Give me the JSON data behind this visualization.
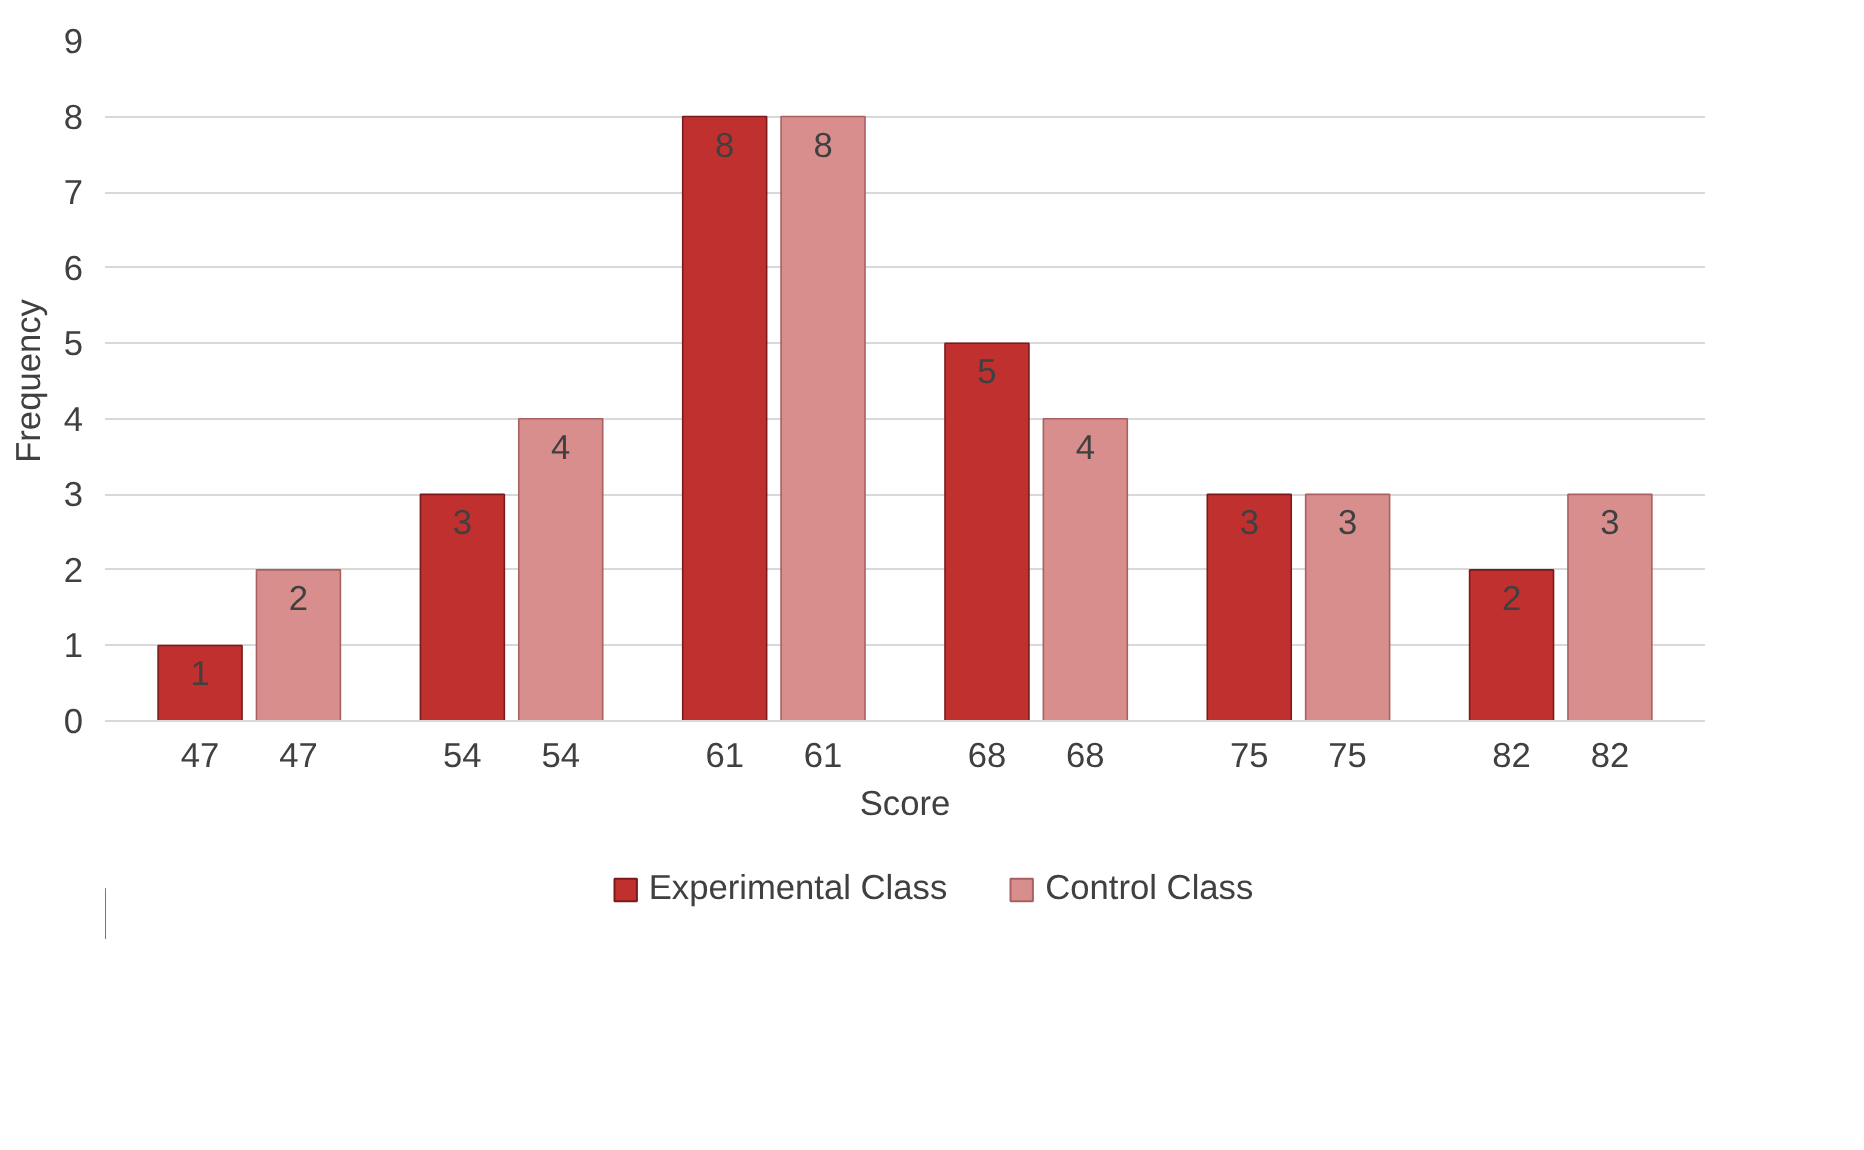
{
  "chart_data": {
    "type": "bar",
    "xlabel": "Score",
    "ylabel": "Frequency",
    "categories": [
      "47",
      "54",
      "61",
      "68",
      "75",
      "82"
    ],
    "series": [
      {
        "name": "Experimental Class",
        "color": "#c0302f",
        "values": [
          1,
          3,
          8,
          5,
          3,
          2
        ]
      },
      {
        "name": "Control Class",
        "color": "#d98e8e",
        "values": [
          2,
          4,
          8,
          4,
          3,
          3
        ]
      }
    ],
    "ylim": [
      0,
      9
    ],
    "yticks": [
      0,
      1,
      2,
      3,
      4,
      5,
      6,
      7,
      8,
      9
    ],
    "grid": "y",
    "legend": "bottom",
    "data_labels": true
  }
}
